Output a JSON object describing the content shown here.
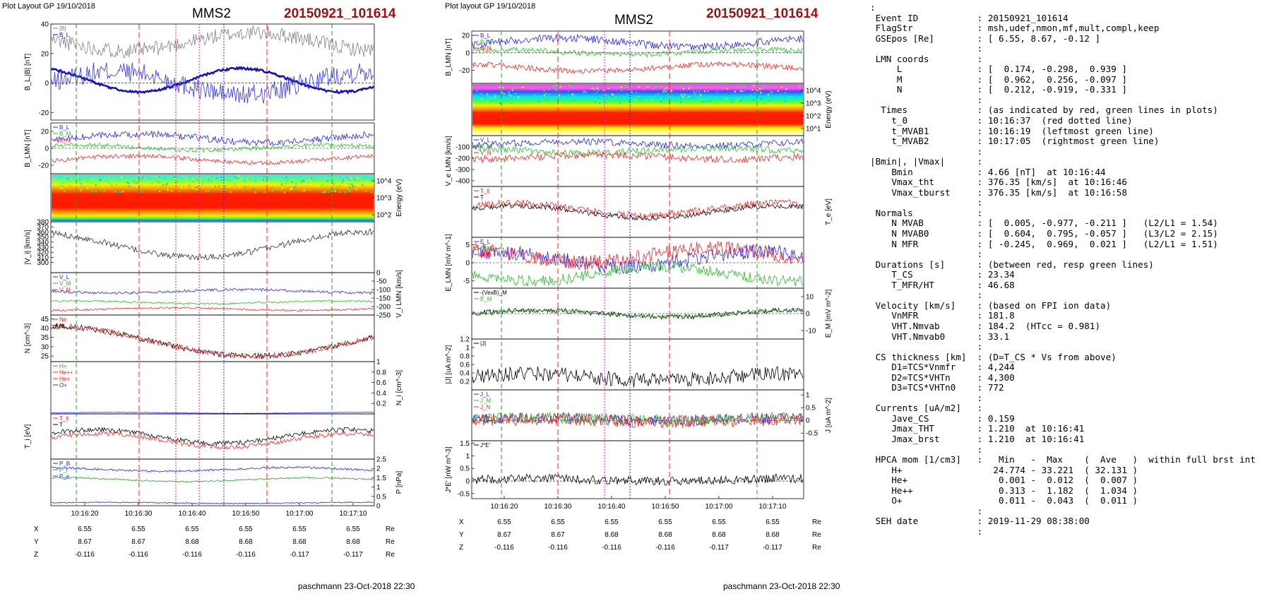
{
  "left_figure": {
    "plot_layout": "Plot Layout GP 19/10/2018",
    "spacecraft": "MMS2",
    "event": "20150921_101614",
    "footer": "paschmann 23-Oct-2018 22:30",
    "time_ticks": [
      "10:16:20",
      "10:16:30",
      "10:16:40",
      "10:16:50",
      "10:17:00",
      "10:17:10"
    ],
    "coord_rows": [
      {
        "label": "X",
        "values": [
          "6.55",
          "6.55",
          "6.55",
          "6.55",
          "6.55",
          "6.55"
        ],
        "unit": "Re"
      },
      {
        "label": "Y",
        "values": [
          "8.67",
          "8.67",
          "8.68",
          "8.68",
          "8.68",
          "8.68"
        ],
        "unit": "Re"
      },
      {
        "label": "Z",
        "values": [
          "-0.116",
          "-0.116",
          "-0.116",
          "-0.116",
          "-0.117",
          "-0.117"
        ],
        "unit": "Re"
      }
    ]
  },
  "right_figure": {
    "plot_layout": "Plot layout GP 19/10/2018",
    "spacecraft": "MMS2",
    "event": "20150921_101614",
    "footer": "paschmann 23-Oct-2018 22:30",
    "time_ticks": [
      "10:16:20",
      "10:16:30",
      "10:16:40",
      "10:16:50",
      "10:17:00",
      "10:17:10"
    ],
    "coord_rows": [
      {
        "label": "X",
        "values": [
          "6.55",
          "6.55",
          "6.55",
          "6.55",
          "6.55",
          "6.55"
        ],
        "unit": "Re"
      },
      {
        "label": "Y",
        "values": [
          "8.67",
          "8.67",
          "8.68",
          "8.68",
          "8.68",
          "8.68"
        ],
        "unit": "Re"
      },
      {
        "label": "Z",
        "values": [
          "-0.116",
          "-0.116",
          "-0.116",
          "-0.116",
          "-0.117",
          "-0.117"
        ],
        "unit": "Re"
      }
    ]
  },
  "chart_data": [
    {
      "type": "line",
      "panel": "left-1",
      "ylabel": "B_L,|B| [nT]",
      "ylim": [
        -25,
        40
      ],
      "yticks": [
        40,
        20,
        0,
        -20
      ],
      "legend": [
        "|B|",
        "B_L",
        "MVAB",
        "B_L minmax",
        "B_L 50% of BL",
        "B_L test",
        "|B|"
      ],
      "series": [
        {
          "name": "|B|",
          "color": "#808080"
        },
        {
          "name": "B_L",
          "color": "#1010c0"
        }
      ]
    },
    {
      "type": "line",
      "panel": "left-2",
      "ylabel": "B_LMN [nT]",
      "ylim": [
        -30,
        30
      ],
      "yticks": [
        20,
        0,
        -20
      ],
      "series": [
        {
          "name": "B_L",
          "color": "#2020ff"
        },
        {
          "name": "B_M",
          "color": "#20c020"
        },
        {
          "name": "B_N",
          "color": "#ff2020"
        }
      ]
    },
    {
      "type": "heatmap",
      "panel": "left-3",
      "ylabel": "Energy (eV)",
      "yticks": [
        "10^4",
        "10^3",
        "10^2"
      ]
    },
    {
      "type": "line",
      "panel": "left-4",
      "ylabel": "|V_i| [km/s]",
      "ylim": [
        280,
        380
      ],
      "yticks": [
        380,
        370,
        360,
        350,
        340,
        330,
        320,
        310,
        300
      ],
      "legend": [
        "|V|",
        "Vmax",
        "Vt",
        "Bvmax"
      ]
    },
    {
      "type": "line",
      "panel": "left-5",
      "ylabel": "V_i LMN [km/s]",
      "ylim": [
        -250,
        0
      ],
      "yticks": [
        0,
        -50,
        -100,
        -150,
        -200,
        -250
      ],
      "series": [
        {
          "name": "V_L",
          "color": "#2020ff"
        },
        {
          "name": "V_M",
          "color": "#20c020"
        },
        {
          "name": "V_N",
          "color": "#ff2020"
        }
      ]
    },
    {
      "type": "line",
      "panel": "left-6",
      "ylabel": "N [cm^-3]",
      "ylim": [
        22,
        47
      ],
      "yticks": [
        45,
        40,
        35,
        30,
        25
      ],
      "series": [
        {
          "name": "Ne",
          "color": "#ff2020"
        },
        {
          "name": "Ni",
          "color": "#000000"
        }
      ]
    },
    {
      "type": "line",
      "panel": "left-7",
      "ylabel": "N_i [cm^-3]",
      "ylim": [
        0,
        1.0
      ],
      "yticks": [
        1.0,
        0.8,
        0.6,
        0.4,
        0.2
      ],
      "series": [
        {
          "name": "H+",
          "color": "#20c020"
        },
        {
          "name": "He++",
          "color": "#ff2020"
        },
        {
          "name": "He+",
          "color": "#ff2020"
        },
        {
          "name": "O+",
          "color": "#2020ff"
        }
      ]
    },
    {
      "type": "line",
      "panel": "left-8",
      "ylabel": "T_i [eV]",
      "series": [
        {
          "name": "T_ll",
          "color": "#ff2020"
        },
        {
          "name": "T",
          "color": "#000000"
        }
      ]
    },
    {
      "type": "line",
      "panel": "left-9",
      "ylabel": "P [nPa]",
      "ylim": [
        0,
        2.5
      ],
      "yticks": [
        2.5,
        2.0,
        1.5,
        1.0,
        0.5,
        0
      ],
      "series": [
        {
          "name": "P_B",
          "color": "#2020ff"
        },
        {
          "name": "P_i",
          "color": "#20a020"
        },
        {
          "name": "P_e",
          "color": "#2020ff"
        }
      ]
    },
    {
      "type": "line",
      "panel": "right-1",
      "ylabel": "B_LMN [nT]",
      "ylim": [
        -35,
        25
      ],
      "yticks": [
        20,
        0,
        -20
      ],
      "series": [
        {
          "name": "B_L",
          "color": "#2020ff"
        },
        {
          "name": "B_M",
          "color": "#20c020"
        },
        {
          "name": "B_N",
          "color": "#ff2020"
        }
      ]
    },
    {
      "type": "heatmap",
      "panel": "right-2",
      "ylabel": "Energy (eV)",
      "yticks": [
        "10^4",
        "10^3",
        "10^2",
        "10^1"
      ]
    },
    {
      "type": "line",
      "panel": "right-3",
      "ylabel": "V_e LMN [km/s]",
      "ylim": [
        -450,
        0
      ],
      "yticks": [
        -100,
        -200,
        -300,
        -400
      ],
      "series": [
        {
          "name": "V_L",
          "color": "#2020ff"
        },
        {
          "name": "V_M",
          "color": "#20c020"
        },
        {
          "name": "V_N",
          "color": "#ff2020"
        }
      ]
    },
    {
      "type": "line",
      "panel": "right-4",
      "ylabel": "T_e [eV]",
      "series": [
        {
          "name": "T_ll",
          "color": "#ff2020"
        },
        {
          "name": "T",
          "color": "#000000"
        }
      ]
    },
    {
      "type": "line",
      "panel": "right-5",
      "ylabel": "E_LMN [mV m^-1]",
      "ylim": [
        -7,
        7
      ],
      "yticks": [
        5,
        0,
        -5
      ],
      "series": [
        {
          "name": "E_L",
          "color": "#2020ff"
        },
        {
          "name": "E_M",
          "color": "#20c020"
        },
        {
          "name": "E_N",
          "color": "#ff2020"
        }
      ]
    },
    {
      "type": "line",
      "panel": "right-6",
      "ylabel": "E_M [mV m^-2]",
      "ylim": [
        -15,
        15
      ],
      "yticks": [
        10,
        0,
        -10
      ],
      "series": [
        {
          "name": "-(VexB)_M",
          "color": "#000000"
        },
        {
          "name": "E_M",
          "color": "#20c020"
        }
      ]
    },
    {
      "type": "line",
      "panel": "right-7",
      "ylabel": "|J| [uA m^-2]",
      "ylim": [
        0,
        1.2
      ],
      "yticks": [
        1.2,
        1.0,
        0.8,
        0.6,
        0.4,
        0.2
      ],
      "series": [
        {
          "name": "|J|",
          "color": "#000000"
        }
      ]
    },
    {
      "type": "line",
      "panel": "right-8",
      "ylabel": "J [uA m^-2]",
      "ylim": [
        -0.8,
        1.2
      ],
      "yticks": [
        1.0,
        0.5,
        0.0,
        -0.5
      ],
      "series": [
        {
          "name": "J_L",
          "color": "#2020ff"
        },
        {
          "name": "J_M",
          "color": "#20c020"
        },
        {
          "name": "J_N",
          "color": "#ff2020"
        }
      ]
    },
    {
      "type": "line",
      "panel": "right-9",
      "ylabel": "J*E' [nW m^-3]",
      "ylim": [
        -0.7,
        1.6
      ],
      "yticks": [
        1.5,
        1.0,
        0.5,
        0.0,
        -0.5
      ],
      "series": [
        {
          "name": "J*E'",
          "color": "#000000"
        }
      ]
    }
  ],
  "info": {
    "rows": [
      {
        "k": ":",
        "v": ""
      },
      {
        "k": " Event ID",
        "v": ": 20150921_101614"
      },
      {
        "k": " FlagStr",
        "v": ": msh,udef,nmon,mf,mult,compl,keep"
      },
      {
        "k": " GSEpos [Re]",
        "v": ": [ 6.55, 8.67, -0.12 ]"
      },
      {
        "k": "",
        "v": ":"
      },
      {
        "k": " LMN coords",
        "v": ":"
      },
      {
        "k": "     L",
        "v": ": [  0.174, -0.298,  0.939 ]"
      },
      {
        "k": "     M",
        "v": ": [  0.962,  0.256, -0.097 ]"
      },
      {
        "k": "     N",
        "v": ": [  0.212, -0.919, -0.331 ]"
      },
      {
        "k": "",
        "v": ":"
      },
      {
        "k": "  Times",
        "v": ": (as indicated by red, green lines in plots)"
      },
      {
        "k": "    t_0",
        "v": ": 10:16:37  (red dotted line)"
      },
      {
        "k": "    t_MVAB1",
        "v": ": 10:16:19  (leftmost green line)"
      },
      {
        "k": "    t_MVAB2",
        "v": ": 10:17:05  (rightmost green line)"
      },
      {
        "k": "",
        "v": ":"
      },
      {
        "k": "|Bmin|, |Vmax|",
        "v": ":"
      },
      {
        "k": "    Bmin",
        "v": ": 4.66 [nT]  at 10:16:44"
      },
      {
        "k": "    Vmax_tht",
        "v": ": 376.35 [km/s]  at 10:16:46"
      },
      {
        "k": "    Vmax_tburst",
        "v": ": 376.35 [km/s]  at 10:16:58"
      },
      {
        "k": "",
        "v": ":"
      },
      {
        "k": " Normals",
        "v": ":"
      },
      {
        "k": "    N MVAB",
        "v": ": [  0.005, -0.977, -0.211 ]   (L2/L1 = 1.54)"
      },
      {
        "k": "    N MVAB0",
        "v": ": [  0.604,  0.795, -0.057 ]   (L3/L2 = 2.15)"
      },
      {
        "k": "    N MFR",
        "v": ": [ -0.245,  0.969,  0.021 ]   (L2/L1 = 1.51)"
      },
      {
        "k": "",
        "v": ":"
      },
      {
        "k": " Durations [s]",
        "v": ": (between red, resp green lines)"
      },
      {
        "k": "    T_CS",
        "v": ": 23.34"
      },
      {
        "k": "    T_MFR/HT",
        "v": ": 46.68"
      },
      {
        "k": "",
        "v": ":"
      },
      {
        "k": " Velocity [km/s]",
        "v": ": (based on FPI ion data)"
      },
      {
        "k": "    VnMFR",
        "v": ": 181.8"
      },
      {
        "k": "    VHT.Nmvab",
        "v": ": 184.2  (HTcc = 0.981)"
      },
      {
        "k": "    VHT.Nmvab0",
        "v": ": 33.1"
      },
      {
        "k": "",
        "v": ":"
      },
      {
        "k": " CS thickness [km]",
        "v": ": (D=T_CS * Vs from above)"
      },
      {
        "k": "    D1=TCS*Vnmfr",
        "v": ": 4,244"
      },
      {
        "k": "    D2=TCS*VHTn",
        "v": ": 4,300"
      },
      {
        "k": "    D3=TCS*VHTn0",
        "v": ": 772"
      },
      {
        "k": "",
        "v": ":"
      },
      {
        "k": " Currents [uA/m2]",
        "v": ":"
      },
      {
        "k": "    Jave_CS",
        "v": ": 0.159"
      },
      {
        "k": "    Jmax_THT",
        "v": ": 1.210  at 10:16:41"
      },
      {
        "k": "    Jmax_brst",
        "v": ": 1.210  at 10:16:41"
      },
      {
        "k": "",
        "v": ":"
      },
      {
        "k": " HPCA mom [1/cm3]",
        "v": ":   Min   -  Max    (  Ave   )  within full brst int"
      },
      {
        "k": "    H+",
        "v": "   24.774 - 33.221  ( 32.131 )"
      },
      {
        "k": "    He+",
        "v": "    0.001 -  0.012  (  0.007 )"
      },
      {
        "k": "    He++",
        "v": "    0.313 -  1.182  (  1.034 )"
      },
      {
        "k": "    O+",
        "v": "    0.011 -  0.043  (  0.011 )"
      },
      {
        "k": "",
        "v": ":"
      },
      {
        "k": " SEH date",
        "v": ": 2019-11-29 08:38:00"
      },
      {
        "k": "",
        "v": ":"
      }
    ]
  }
}
